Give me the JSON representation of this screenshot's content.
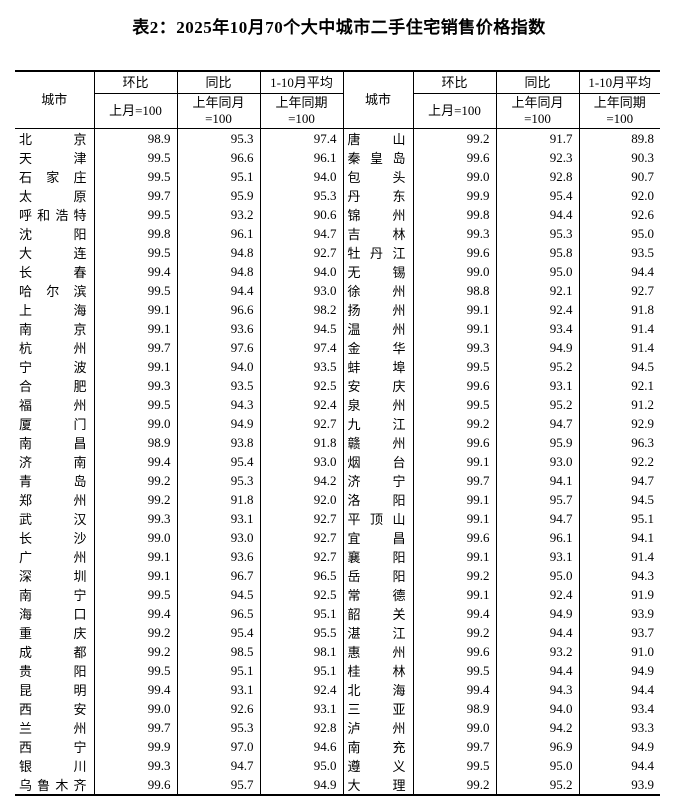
{
  "title": "表2：2025年10月70个大中城市二手住宅销售价格指数",
  "header": {
    "city": "城市",
    "mom": "环比",
    "yoy": "同比",
    "avg": "1-10月平均",
    "mom_base": "上月=100",
    "yoy_base": "上年同月=100",
    "avg_base": "上年同期=100"
  },
  "colors": {
    "text": "#000000",
    "border": "#000000",
    "background": "#ffffff"
  },
  "left_rows": [
    {
      "city": "北京",
      "mom": "98.9",
      "yoy": "95.3",
      "avg": "97.4"
    },
    {
      "city": "天津",
      "mom": "99.5",
      "yoy": "96.6",
      "avg": "96.1"
    },
    {
      "city": "石家庄",
      "mom": "99.5",
      "yoy": "95.1",
      "avg": "94.0"
    },
    {
      "city": "太原",
      "mom": "99.7",
      "yoy": "95.9",
      "avg": "95.3"
    },
    {
      "city": "呼和浩特",
      "mom": "99.5",
      "yoy": "93.2",
      "avg": "90.6"
    },
    {
      "city": "沈阳",
      "mom": "99.8",
      "yoy": "96.1",
      "avg": "94.7"
    },
    {
      "city": "大连",
      "mom": "99.5",
      "yoy": "94.8",
      "avg": "92.7"
    },
    {
      "city": "长春",
      "mom": "99.4",
      "yoy": "94.8",
      "avg": "94.0"
    },
    {
      "city": "哈尔滨",
      "mom": "99.5",
      "yoy": "94.4",
      "avg": "93.0"
    },
    {
      "city": "上海",
      "mom": "99.1",
      "yoy": "96.6",
      "avg": "98.2"
    },
    {
      "city": "南京",
      "mom": "99.1",
      "yoy": "93.6",
      "avg": "94.5"
    },
    {
      "city": "杭州",
      "mom": "99.7",
      "yoy": "97.6",
      "avg": "97.4"
    },
    {
      "city": "宁波",
      "mom": "99.1",
      "yoy": "94.0",
      "avg": "93.5"
    },
    {
      "city": "合肥",
      "mom": "99.3",
      "yoy": "93.5",
      "avg": "92.5"
    },
    {
      "city": "福州",
      "mom": "99.5",
      "yoy": "94.3",
      "avg": "92.4"
    },
    {
      "city": "厦门",
      "mom": "99.0",
      "yoy": "94.9",
      "avg": "92.7"
    },
    {
      "city": "南昌",
      "mom": "98.9",
      "yoy": "93.8",
      "avg": "91.8"
    },
    {
      "city": "济南",
      "mom": "99.4",
      "yoy": "95.4",
      "avg": "93.0"
    },
    {
      "city": "青岛",
      "mom": "99.2",
      "yoy": "95.3",
      "avg": "94.2"
    },
    {
      "city": "郑州",
      "mom": "99.2",
      "yoy": "91.8",
      "avg": "92.0"
    },
    {
      "city": "武汉",
      "mom": "99.3",
      "yoy": "93.1",
      "avg": "92.7"
    },
    {
      "city": "长沙",
      "mom": "99.0",
      "yoy": "93.0",
      "avg": "92.7"
    },
    {
      "city": "广州",
      "mom": "99.1",
      "yoy": "93.6",
      "avg": "92.7"
    },
    {
      "city": "深圳",
      "mom": "99.1",
      "yoy": "96.7",
      "avg": "96.5"
    },
    {
      "city": "南宁",
      "mom": "99.5",
      "yoy": "94.5",
      "avg": "92.5"
    },
    {
      "city": "海口",
      "mom": "99.4",
      "yoy": "96.5",
      "avg": "95.1"
    },
    {
      "city": "重庆",
      "mom": "99.2",
      "yoy": "95.4",
      "avg": "95.5"
    },
    {
      "city": "成都",
      "mom": "99.2",
      "yoy": "98.5",
      "avg": "98.1"
    },
    {
      "city": "贵阳",
      "mom": "99.5",
      "yoy": "95.1",
      "avg": "95.1"
    },
    {
      "city": "昆明",
      "mom": "99.4",
      "yoy": "93.1",
      "avg": "92.4"
    },
    {
      "city": "西安",
      "mom": "99.0",
      "yoy": "92.6",
      "avg": "93.1"
    },
    {
      "city": "兰州",
      "mom": "99.7",
      "yoy": "95.3",
      "avg": "92.8"
    },
    {
      "city": "西宁",
      "mom": "99.9",
      "yoy": "97.0",
      "avg": "94.6"
    },
    {
      "city": "银川",
      "mom": "99.3",
      "yoy": "94.7",
      "avg": "95.0"
    },
    {
      "city": "乌鲁木齐",
      "mom": "99.6",
      "yoy": "95.7",
      "avg": "94.9"
    }
  ],
  "right_rows": [
    {
      "city": "唐山",
      "mom": "99.2",
      "yoy": "91.7",
      "avg": "89.8"
    },
    {
      "city": "秦皇岛",
      "mom": "99.6",
      "yoy": "92.3",
      "avg": "90.3"
    },
    {
      "city": "包头",
      "mom": "99.0",
      "yoy": "92.8",
      "avg": "90.7"
    },
    {
      "city": "丹东",
      "mom": "99.9",
      "yoy": "95.4",
      "avg": "92.0"
    },
    {
      "city": "锦州",
      "mom": "99.8",
      "yoy": "94.4",
      "avg": "92.6"
    },
    {
      "city": "吉林",
      "mom": "99.3",
      "yoy": "95.3",
      "avg": "95.0"
    },
    {
      "city": "牡丹江",
      "mom": "99.6",
      "yoy": "95.8",
      "avg": "93.5"
    },
    {
      "city": "无锡",
      "mom": "99.0",
      "yoy": "95.0",
      "avg": "94.4"
    },
    {
      "city": "徐州",
      "mom": "98.8",
      "yoy": "92.1",
      "avg": "92.7"
    },
    {
      "city": "扬州",
      "mom": "99.1",
      "yoy": "92.4",
      "avg": "91.8"
    },
    {
      "city": "温州",
      "mom": "99.1",
      "yoy": "93.4",
      "avg": "91.4"
    },
    {
      "city": "金华",
      "mom": "99.3",
      "yoy": "94.9",
      "avg": "91.4"
    },
    {
      "city": "蚌埠",
      "mom": "99.5",
      "yoy": "95.2",
      "avg": "94.5"
    },
    {
      "city": "安庆",
      "mom": "99.6",
      "yoy": "93.1",
      "avg": "92.1"
    },
    {
      "city": "泉州",
      "mom": "99.5",
      "yoy": "95.2",
      "avg": "91.2"
    },
    {
      "city": "九江",
      "mom": "99.2",
      "yoy": "94.7",
      "avg": "92.9"
    },
    {
      "city": "赣州",
      "mom": "99.6",
      "yoy": "95.9",
      "avg": "96.3"
    },
    {
      "city": "烟台",
      "mom": "99.1",
      "yoy": "93.0",
      "avg": "92.2"
    },
    {
      "city": "济宁",
      "mom": "99.7",
      "yoy": "94.1",
      "avg": "94.7"
    },
    {
      "city": "洛阳",
      "mom": "99.1",
      "yoy": "95.7",
      "avg": "94.5"
    },
    {
      "city": "平顶山",
      "mom": "99.1",
      "yoy": "94.7",
      "avg": "95.1"
    },
    {
      "city": "宜昌",
      "mom": "99.6",
      "yoy": "96.1",
      "avg": "94.1"
    },
    {
      "city": "襄阳",
      "mom": "99.1",
      "yoy": "93.1",
      "avg": "91.4"
    },
    {
      "city": "岳阳",
      "mom": "99.2",
      "yoy": "95.0",
      "avg": "94.3"
    },
    {
      "city": "常德",
      "mom": "99.1",
      "yoy": "92.4",
      "avg": "91.9"
    },
    {
      "city": "韶关",
      "mom": "99.4",
      "yoy": "94.9",
      "avg": "93.9"
    },
    {
      "city": "湛江",
      "mom": "99.2",
      "yoy": "94.4",
      "avg": "93.7"
    },
    {
      "city": "惠州",
      "mom": "99.6",
      "yoy": "93.2",
      "avg": "91.0"
    },
    {
      "city": "桂林",
      "mom": "99.5",
      "yoy": "94.4",
      "avg": "94.9"
    },
    {
      "city": "北海",
      "mom": "99.4",
      "yoy": "94.3",
      "avg": "94.4"
    },
    {
      "city": "三亚",
      "mom": "98.9",
      "yoy": "94.0",
      "avg": "93.4"
    },
    {
      "city": "泸州",
      "mom": "99.0",
      "yoy": "94.2",
      "avg": "93.3"
    },
    {
      "city": "南充",
      "mom": "99.7",
      "yoy": "96.9",
      "avg": "94.9"
    },
    {
      "city": "遵义",
      "mom": "99.5",
      "yoy": "95.0",
      "avg": "94.4"
    },
    {
      "city": "大理",
      "mom": "99.2",
      "yoy": "95.2",
      "avg": "93.9"
    }
  ]
}
